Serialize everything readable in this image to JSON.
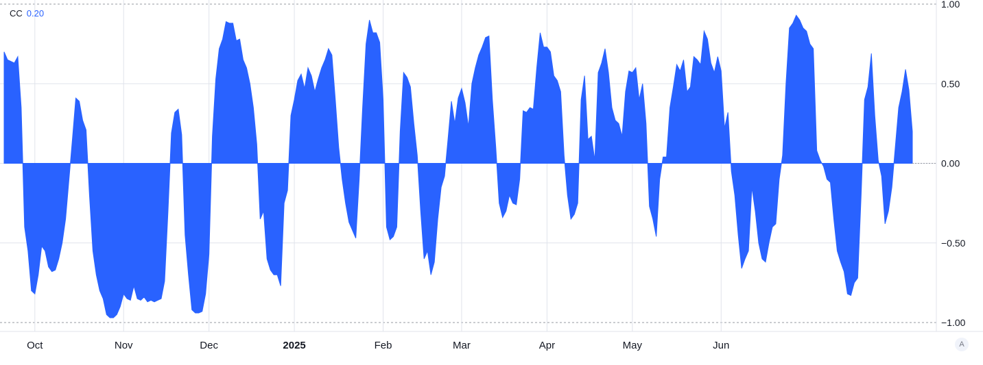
{
  "legend": {
    "name": "CC",
    "value": "0.20"
  },
  "auto_scale_label": "A",
  "colors": {
    "fill": "#2962ff",
    "grid": "#e0e3eb",
    "text": "#131722",
    "axis": "#b2b5be"
  },
  "chart_data": {
    "type": "area",
    "series": [
      {
        "values": [
          0.7,
          0.65,
          0.64,
          0.63,
          0.67,
          0.35,
          -0.4,
          -0.55,
          -0.8,
          -0.82,
          -0.7,
          -0.52,
          -0.55,
          -0.65,
          -0.68,
          -0.67,
          -0.6,
          -0.5,
          -0.35,
          -0.1,
          0.15,
          0.41,
          0.39,
          0.27,
          0.21,
          -0.2,
          -0.55,
          -0.7,
          -0.8,
          -0.85,
          -0.95,
          -0.97,
          -0.97,
          -0.95,
          -0.9,
          -0.82,
          -0.85,
          -0.86,
          -0.77,
          -0.85,
          -0.86,
          -0.84,
          -0.87,
          -0.86,
          -0.87,
          -0.86,
          -0.85,
          -0.74,
          -0.3,
          0.19,
          0.32,
          0.34,
          0.18,
          -0.45,
          -0.7,
          -0.92,
          -0.94,
          -0.94,
          -0.93,
          -0.82,
          -0.57,
          0.17,
          0.53,
          0.72,
          0.78,
          0.89,
          0.88,
          0.88,
          0.77,
          0.78,
          0.65,
          0.6,
          0.5,
          0.35,
          0.12,
          -0.35,
          -0.3,
          -0.6,
          -0.67,
          -0.7,
          -0.7,
          -0.77,
          -0.25,
          -0.17,
          0.3,
          0.4,
          0.52,
          0.56,
          0.47,
          0.6,
          0.55,
          0.45,
          0.53,
          0.6,
          0.65,
          0.72,
          0.68,
          0.4,
          0.1,
          -0.1,
          -0.25,
          -0.37,
          -0.42,
          -0.47,
          -0.1,
          0.35,
          0.75,
          0.9,
          0.82,
          0.82,
          0.76,
          0.4,
          -0.4,
          -0.48,
          -0.46,
          -0.4,
          0.2,
          0.57,
          0.54,
          0.48,
          0.25,
          0.05,
          -0.3,
          -0.6,
          -0.55,
          -0.7,
          -0.62,
          -0.35,
          -0.15,
          -0.08,
          0.15,
          0.39,
          0.25,
          0.41,
          0.47,
          0.38,
          0.23,
          0.5,
          0.6,
          0.68,
          0.73,
          0.79,
          0.8,
          0.4,
          0.1,
          -0.25,
          -0.34,
          -0.3,
          -0.2,
          -0.25,
          -0.26,
          -0.1,
          0.33,
          0.32,
          0.35,
          0.34,
          0.6,
          0.82,
          0.73,
          0.73,
          0.7,
          0.55,
          0.52,
          0.45,
          0.05,
          -0.2,
          -0.35,
          -0.32,
          -0.25,
          0.4,
          0.55,
          0.15,
          0.17,
          0.02,
          0.57,
          0.63,
          0.72,
          0.57,
          0.35,
          0.27,
          0.25,
          0.17,
          0.45,
          0.58,
          0.57,
          0.6,
          0.4,
          0.5,
          0.25,
          -0.27,
          -0.35,
          -0.46,
          -0.1,
          0.04,
          0.04,
          0.35,
          0.48,
          0.62,
          0.58,
          0.65,
          0.45,
          0.48,
          0.67,
          0.65,
          0.62,
          0.83,
          0.78,
          0.63,
          0.57,
          0.67,
          0.58,
          0.22,
          0.32,
          -0.05,
          -0.2,
          -0.45,
          -0.66,
          -0.6,
          -0.55,
          -0.15,
          -0.3,
          -0.5,
          -0.6,
          -0.62,
          -0.5,
          -0.4,
          -0.38,
          -0.1,
          0.05,
          0.5,
          0.85,
          0.88,
          0.93,
          0.9,
          0.85,
          0.83,
          0.75,
          0.72,
          0.08,
          0.02,
          -0.02,
          -0.1,
          -0.12,
          -0.35,
          -0.55,
          -0.62,
          -0.68,
          -0.82,
          -0.83,
          -0.75,
          -0.72,
          -0.2,
          0.4,
          0.48,
          0.69,
          0.3,
          0.02,
          -0.08,
          -0.38,
          -0.3,
          -0.15,
          0.1,
          0.35,
          0.45,
          0.59,
          0.46,
          0.2
        ]
      }
    ],
    "ylim": [
      -1,
      1
    ],
    "yticks": [
      {
        "value": 1,
        "label": "1.00"
      },
      {
        "value": 0.5,
        "label": "0.50"
      },
      {
        "value": 0,
        "label": "0.00"
      },
      {
        "value": -0.5,
        "label": "−0.50"
      },
      {
        "value": -1,
        "label": "−1.00"
      }
    ],
    "xticks": [
      {
        "index": 9,
        "label": "Oct",
        "bold": false
      },
      {
        "index": 35,
        "label": "Nov",
        "bold": false
      },
      {
        "index": 60,
        "label": "Dec",
        "bold": false
      },
      {
        "index": 85,
        "label": "2025",
        "bold": true
      },
      {
        "index": 111,
        "label": "Feb",
        "bold": false
      },
      {
        "index": 134,
        "label": "Mar",
        "bold": false
      },
      {
        "index": 159,
        "label": "Apr",
        "bold": false
      },
      {
        "index": 184,
        "label": "May",
        "bold": false
      },
      {
        "index": 210,
        "label": "Jun",
        "bold": false
      }
    ],
    "grid": true
  }
}
